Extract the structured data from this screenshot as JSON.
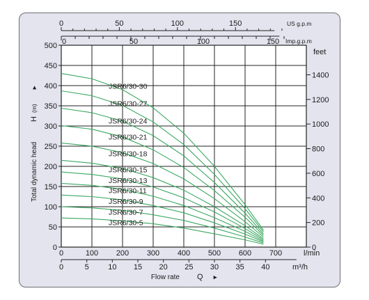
{
  "chart_data": {
    "type": "line",
    "x_axes": {
      "lmin": {
        "unit": "l/min",
        "ticks": [
          0,
          100,
          200,
          300,
          400,
          500,
          600,
          700
        ],
        "range": [
          0,
          800
        ]
      },
      "m3h": {
        "unit": "m³/h",
        "ticks": [
          0,
          5,
          10,
          15,
          20,
          25,
          30,
          35,
          40
        ],
        "range": [
          0,
          48
        ]
      },
      "usgpm": {
        "unit": "US g.p.m",
        "ticks": [
          0,
          50,
          100,
          150
        ],
        "range": [
          0,
          211
        ]
      },
      "impgpm": {
        "unit": "Imp.g.p.m",
        "ticks": [
          0,
          50,
          100,
          150
        ],
        "range": [
          0,
          176
        ]
      }
    },
    "y_axes": {
      "meters": {
        "unit": "(m)",
        "symbol": "H",
        "ticks": [
          0,
          50,
          100,
          150,
          200,
          250,
          300,
          350,
          400,
          450,
          500
        ],
        "range": [
          0,
          500
        ]
      },
      "feet": {
        "unit": "feet",
        "ticks": [
          0,
          200,
          400,
          600,
          800,
          1000,
          1200,
          1400
        ],
        "range": [
          0,
          1640
        ]
      }
    },
    "xlabel": "Flow rate",
    "xsymbol": "Q",
    "ylabel": "Total dynamic head",
    "grid": true,
    "series_color": "#3aa860",
    "series": [
      {
        "name": "JSR6/30-30",
        "shutoff_head": 430,
        "points": [
          [
            0,
            430
          ],
          [
            100,
            417
          ],
          [
            200,
            390
          ],
          [
            300,
            345
          ],
          [
            400,
            282
          ],
          [
            500,
            200
          ],
          [
            600,
            105
          ],
          [
            660,
            42
          ]
        ]
      },
      {
        "name": "JSR6/30-27",
        "shutoff_head": 387,
        "points": [
          [
            0,
            387
          ],
          [
            100,
            375
          ],
          [
            200,
            351
          ],
          [
            300,
            310
          ],
          [
            400,
            254
          ],
          [
            500,
            180
          ],
          [
            600,
            95
          ],
          [
            660,
            38
          ]
        ]
      },
      {
        "name": "JSR6/30-24",
        "shutoff_head": 344,
        "points": [
          [
            0,
            344
          ],
          [
            100,
            333
          ],
          [
            200,
            312
          ],
          [
            300,
            276
          ],
          [
            400,
            226
          ],
          [
            500,
            160
          ],
          [
            600,
            84
          ],
          [
            660,
            33
          ]
        ]
      },
      {
        "name": "JSR6/30-21",
        "shutoff_head": 301,
        "points": [
          [
            0,
            301
          ],
          [
            100,
            292
          ],
          [
            200,
            273
          ],
          [
            300,
            241
          ],
          [
            400,
            197
          ],
          [
            500,
            140
          ],
          [
            600,
            74
          ],
          [
            660,
            29
          ]
        ]
      },
      {
        "name": "JSR6/30-18",
        "shutoff_head": 258,
        "points": [
          [
            0,
            258
          ],
          [
            100,
            250
          ],
          [
            200,
            234
          ],
          [
            300,
            207
          ],
          [
            400,
            169
          ],
          [
            500,
            120
          ],
          [
            600,
            63
          ],
          [
            660,
            25
          ]
        ]
      },
      {
        "name": "JSR6/30-15",
        "shutoff_head": 215,
        "points": [
          [
            0,
            215
          ],
          [
            100,
            208
          ],
          [
            200,
            195
          ],
          [
            300,
            172
          ],
          [
            400,
            141
          ],
          [
            500,
            100
          ],
          [
            600,
            53
          ],
          [
            660,
            21
          ]
        ]
      },
      {
        "name": "JSR6/30-13",
        "shutoff_head": 186,
        "points": [
          [
            0,
            186
          ],
          [
            100,
            180
          ],
          [
            200,
            169
          ],
          [
            300,
            149
          ],
          [
            400,
            122
          ],
          [
            500,
            87
          ],
          [
            600,
            46
          ],
          [
            660,
            18
          ]
        ]
      },
      {
        "name": "JSR6/30-11",
        "shutoff_head": 158,
        "points": [
          [
            0,
            158
          ],
          [
            100,
            153
          ],
          [
            200,
            143
          ],
          [
            300,
            126
          ],
          [
            400,
            103
          ],
          [
            500,
            73
          ],
          [
            600,
            39
          ],
          [
            660,
            15
          ]
        ]
      },
      {
        "name": "JSR6/30-9",
        "shutoff_head": 129,
        "points": [
          [
            0,
            129
          ],
          [
            100,
            125
          ],
          [
            200,
            117
          ],
          [
            300,
            103
          ],
          [
            400,
            85
          ],
          [
            500,
            60
          ],
          [
            600,
            32
          ],
          [
            660,
            13
          ]
        ]
      },
      {
        "name": "JSR6/30-7",
        "shutoff_head": 100,
        "points": [
          [
            0,
            100
          ],
          [
            100,
            97
          ],
          [
            200,
            91
          ],
          [
            300,
            80
          ],
          [
            400,
            66
          ],
          [
            500,
            47
          ],
          [
            600,
            25
          ],
          [
            660,
            10
          ]
        ]
      },
      {
        "name": "JSR6/30-5",
        "shutoff_head": 72,
        "points": [
          [
            0,
            72
          ],
          [
            100,
            70
          ],
          [
            200,
            65
          ],
          [
            300,
            58
          ],
          [
            400,
            47
          ],
          [
            500,
            33
          ],
          [
            600,
            18
          ],
          [
            660,
            7
          ]
        ]
      }
    ]
  }
}
